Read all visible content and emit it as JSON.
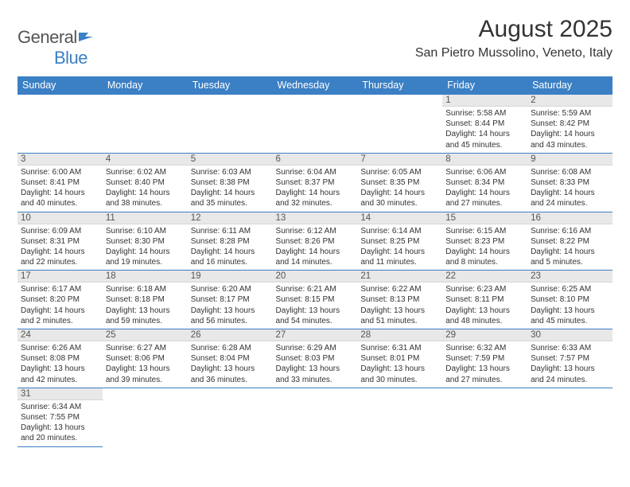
{
  "brand": {
    "part1": "General",
    "part2": "Blue"
  },
  "title": "August 2025",
  "location": "San Pietro Mussolino, Veneto, Italy",
  "colors": {
    "header_bg": "#3b7fc4",
    "header_text": "#ffffff",
    "daynum_bg": "#e8e8e8",
    "cell_border": "#3b7fc4",
    "body_text": "#333333",
    "page_bg": "#ffffff"
  },
  "typography": {
    "title_fontsize": 30,
    "location_fontsize": 16,
    "weekday_fontsize": 12.5,
    "daynum_fontsize": 11.5,
    "cell_fontsize": 10
  },
  "weekdays": [
    "Sunday",
    "Monday",
    "Tuesday",
    "Wednesday",
    "Thursday",
    "Friday",
    "Saturday"
  ],
  "weeks": [
    [
      null,
      null,
      null,
      null,
      null,
      {
        "num": "1",
        "sunrise": "Sunrise: 5:58 AM",
        "sunset": "Sunset: 8:44 PM",
        "daylight": "Daylight: 14 hours and 45 minutes."
      },
      {
        "num": "2",
        "sunrise": "Sunrise: 5:59 AM",
        "sunset": "Sunset: 8:42 PM",
        "daylight": "Daylight: 14 hours and 43 minutes."
      }
    ],
    [
      {
        "num": "3",
        "sunrise": "Sunrise: 6:00 AM",
        "sunset": "Sunset: 8:41 PM",
        "daylight": "Daylight: 14 hours and 40 minutes."
      },
      {
        "num": "4",
        "sunrise": "Sunrise: 6:02 AM",
        "sunset": "Sunset: 8:40 PM",
        "daylight": "Daylight: 14 hours and 38 minutes."
      },
      {
        "num": "5",
        "sunrise": "Sunrise: 6:03 AM",
        "sunset": "Sunset: 8:38 PM",
        "daylight": "Daylight: 14 hours and 35 minutes."
      },
      {
        "num": "6",
        "sunrise": "Sunrise: 6:04 AM",
        "sunset": "Sunset: 8:37 PM",
        "daylight": "Daylight: 14 hours and 32 minutes."
      },
      {
        "num": "7",
        "sunrise": "Sunrise: 6:05 AM",
        "sunset": "Sunset: 8:35 PM",
        "daylight": "Daylight: 14 hours and 30 minutes."
      },
      {
        "num": "8",
        "sunrise": "Sunrise: 6:06 AM",
        "sunset": "Sunset: 8:34 PM",
        "daylight": "Daylight: 14 hours and 27 minutes."
      },
      {
        "num": "9",
        "sunrise": "Sunrise: 6:08 AM",
        "sunset": "Sunset: 8:33 PM",
        "daylight": "Daylight: 14 hours and 24 minutes."
      }
    ],
    [
      {
        "num": "10",
        "sunrise": "Sunrise: 6:09 AM",
        "sunset": "Sunset: 8:31 PM",
        "daylight": "Daylight: 14 hours and 22 minutes."
      },
      {
        "num": "11",
        "sunrise": "Sunrise: 6:10 AM",
        "sunset": "Sunset: 8:30 PM",
        "daylight": "Daylight: 14 hours and 19 minutes."
      },
      {
        "num": "12",
        "sunrise": "Sunrise: 6:11 AM",
        "sunset": "Sunset: 8:28 PM",
        "daylight": "Daylight: 14 hours and 16 minutes."
      },
      {
        "num": "13",
        "sunrise": "Sunrise: 6:12 AM",
        "sunset": "Sunset: 8:26 PM",
        "daylight": "Daylight: 14 hours and 14 minutes."
      },
      {
        "num": "14",
        "sunrise": "Sunrise: 6:14 AM",
        "sunset": "Sunset: 8:25 PM",
        "daylight": "Daylight: 14 hours and 11 minutes."
      },
      {
        "num": "15",
        "sunrise": "Sunrise: 6:15 AM",
        "sunset": "Sunset: 8:23 PM",
        "daylight": "Daylight: 14 hours and 8 minutes."
      },
      {
        "num": "16",
        "sunrise": "Sunrise: 6:16 AM",
        "sunset": "Sunset: 8:22 PM",
        "daylight": "Daylight: 14 hours and 5 minutes."
      }
    ],
    [
      {
        "num": "17",
        "sunrise": "Sunrise: 6:17 AM",
        "sunset": "Sunset: 8:20 PM",
        "daylight": "Daylight: 14 hours and 2 minutes."
      },
      {
        "num": "18",
        "sunrise": "Sunrise: 6:18 AM",
        "sunset": "Sunset: 8:18 PM",
        "daylight": "Daylight: 13 hours and 59 minutes."
      },
      {
        "num": "19",
        "sunrise": "Sunrise: 6:20 AM",
        "sunset": "Sunset: 8:17 PM",
        "daylight": "Daylight: 13 hours and 56 minutes."
      },
      {
        "num": "20",
        "sunrise": "Sunrise: 6:21 AM",
        "sunset": "Sunset: 8:15 PM",
        "daylight": "Daylight: 13 hours and 54 minutes."
      },
      {
        "num": "21",
        "sunrise": "Sunrise: 6:22 AM",
        "sunset": "Sunset: 8:13 PM",
        "daylight": "Daylight: 13 hours and 51 minutes."
      },
      {
        "num": "22",
        "sunrise": "Sunrise: 6:23 AM",
        "sunset": "Sunset: 8:11 PM",
        "daylight": "Daylight: 13 hours and 48 minutes."
      },
      {
        "num": "23",
        "sunrise": "Sunrise: 6:25 AM",
        "sunset": "Sunset: 8:10 PM",
        "daylight": "Daylight: 13 hours and 45 minutes."
      }
    ],
    [
      {
        "num": "24",
        "sunrise": "Sunrise: 6:26 AM",
        "sunset": "Sunset: 8:08 PM",
        "daylight": "Daylight: 13 hours and 42 minutes."
      },
      {
        "num": "25",
        "sunrise": "Sunrise: 6:27 AM",
        "sunset": "Sunset: 8:06 PM",
        "daylight": "Daylight: 13 hours and 39 minutes."
      },
      {
        "num": "26",
        "sunrise": "Sunrise: 6:28 AM",
        "sunset": "Sunset: 8:04 PM",
        "daylight": "Daylight: 13 hours and 36 minutes."
      },
      {
        "num": "27",
        "sunrise": "Sunrise: 6:29 AM",
        "sunset": "Sunset: 8:03 PM",
        "daylight": "Daylight: 13 hours and 33 minutes."
      },
      {
        "num": "28",
        "sunrise": "Sunrise: 6:31 AM",
        "sunset": "Sunset: 8:01 PM",
        "daylight": "Daylight: 13 hours and 30 minutes."
      },
      {
        "num": "29",
        "sunrise": "Sunrise: 6:32 AM",
        "sunset": "Sunset: 7:59 PM",
        "daylight": "Daylight: 13 hours and 27 minutes."
      },
      {
        "num": "30",
        "sunrise": "Sunrise: 6:33 AM",
        "sunset": "Sunset: 7:57 PM",
        "daylight": "Daylight: 13 hours and 24 minutes."
      }
    ],
    [
      {
        "num": "31",
        "sunrise": "Sunrise: 6:34 AM",
        "sunset": "Sunset: 7:55 PM",
        "daylight": "Daylight: 13 hours and 20 minutes."
      },
      null,
      null,
      null,
      null,
      null,
      null
    ]
  ]
}
